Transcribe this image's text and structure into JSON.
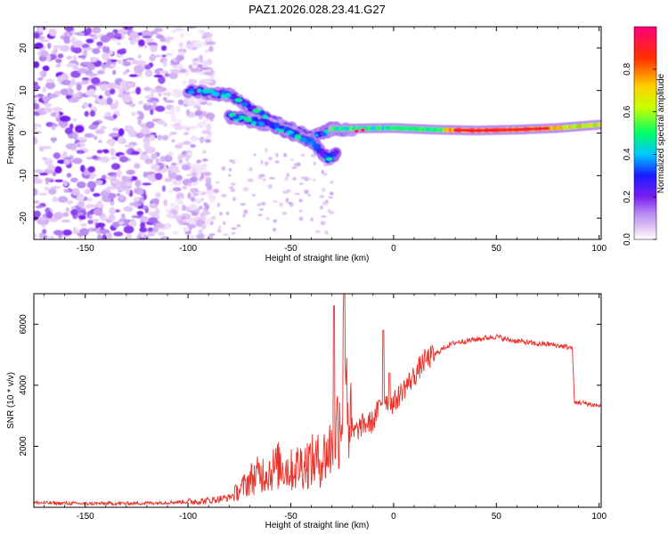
{
  "chart_data": [
    {
      "type": "heatmap",
      "title": "PAZ1.2026.028.23.41.G27",
      "xlabel": "Height of straight line (km)",
      "ylabel": "Frequency (Hz)",
      "xlim": [
        -175,
        101
      ],
      "ylim": [
        -25,
        25
      ],
      "xticks": [
        -150,
        -100,
        -50,
        0,
        50,
        100
      ],
      "yticks": [
        -20,
        -10,
        0,
        10,
        20
      ],
      "colorbar": {
        "label": "Normalized spectral amplitude",
        "range": [
          0.0,
          1.0
        ],
        "ticks": [
          0.0,
          0.2,
          0.4,
          0.6,
          0.8
        ],
        "tick_labels": [
          "0.0",
          "0.2",
          "0.4",
          "0.6",
          "0.8"
        ],
        "colors": [
          "#ffffff",
          "#e4c9f5",
          "#b98cf2",
          "#7a1ff0",
          "#1a1aff",
          "#00c8ff",
          "#00ff66",
          "#c8ff00",
          "#ffd000",
          "#ff3000",
          "#ff007a"
        ]
      },
      "features": [
        {
          "name": "noise",
          "x_range": [
            -175,
            -100
          ],
          "freq_range": [
            -25,
            25
          ]
        },
        {
          "name": "upper_branch",
          "points": [
            [
              -100,
              10
            ],
            [
              -90,
              9.5
            ],
            [
              -80,
              9
            ],
            [
              -70,
              6
            ],
            [
              -60,
              3
            ],
            [
              -50,
              1
            ],
            [
              -40,
              -1
            ],
            [
              -30,
              1
            ],
            [
              -20,
              0.8
            ]
          ]
        },
        {
          "name": "lower_branch",
          "points": [
            [
              -80,
              4
            ],
            [
              -70,
              3
            ],
            [
              -60,
              2
            ],
            [
              -50,
              0
            ],
            [
              -40,
              -2
            ],
            [
              -32,
              -6
            ],
            [
              -28,
              -5
            ]
          ]
        },
        {
          "name": "carrier",
          "points": [
            [
              -30,
              1
            ],
            [
              0,
              1.2
            ],
            [
              20,
              0.8
            ],
            [
              40,
              0.6
            ],
            [
              60,
              0.8
            ],
            [
              80,
              1.2
            ],
            [
              101,
              2
            ]
          ]
        }
      ]
    },
    {
      "type": "line",
      "xlabel": "Height of straight line (km)",
      "ylabel": "SNR (10 * v/v)",
      "xlim": [
        -175,
        101
      ],
      "ylim": [
        0,
        7000
      ],
      "xticks": [
        -150,
        -100,
        -50,
        0,
        50,
        100
      ],
      "yticks": [
        2000,
        4000,
        6000
      ],
      "color": "#e8332b",
      "series": [
        {
          "name": "SNR",
          "x": [
            -175,
            -150,
            -125,
            -100,
            -90,
            -80,
            -75,
            -70,
            -65,
            -60,
            -55,
            -50,
            -45,
            -40,
            -35,
            -30,
            -25,
            -24,
            -22,
            -20,
            -15,
            -10,
            -5,
            0,
            5,
            10,
            15,
            20,
            25,
            30,
            35,
            40,
            45,
            50,
            55,
            60,
            65,
            70,
            75,
            80,
            85,
            87,
            88,
            90,
            95,
            100,
            101
          ],
          "y": [
            150,
            120,
            130,
            180,
            220,
            320,
            550,
            900,
            1100,
            1200,
            1400,
            1200,
            1400,
            1500,
            1550,
            2000,
            3300,
            6800,
            3000,
            2400,
            2700,
            2800,
            3600,
            3400,
            3900,
            4300,
            4800,
            5000,
            5250,
            5400,
            5450,
            5500,
            5550,
            5600,
            5500,
            5450,
            5400,
            5350,
            5350,
            5300,
            5250,
            5200,
            3400,
            3450,
            3380,
            3330,
            3300
          ]
        }
      ],
      "spikes": [
        [
          -29,
          6600
        ],
        [
          -24,
          7000
        ],
        [
          -5,
          5800
        ],
        [
          -2,
          4400
        ]
      ]
    }
  ]
}
